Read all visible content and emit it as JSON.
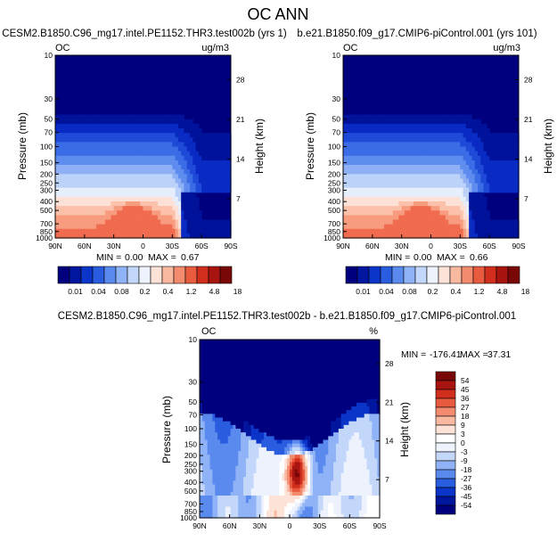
{
  "page": {
    "title": "OC ANN"
  },
  "colors": {
    "levels": [
      "#00007f",
      "#00129a",
      "#0a2ac4",
      "#1f4ad8",
      "#3a6ce6",
      "#5f8cef",
      "#8fb0f5",
      "#bcd2f8",
      "#e6eefc",
      "#ffffff",
      "#fde1d6",
      "#fbc1aa",
      "#f79c7e",
      "#f06b4f",
      "#e0402b",
      "#c11f16",
      "#940f0b",
      "#700707"
    ],
    "lowerBar": [
      "#00007f",
      "#00169e",
      "#0b35c8",
      "#2a5ce0",
      "#5a8aee",
      "#8fb3f6",
      "#c3d7fa",
      "#edf2fd",
      "#fde2d8",
      "#f9b9a1",
      "#f38b6e",
      "#e85b3f",
      "#d12e1e",
      "#a81510",
      "#7a0707"
    ],
    "diffBar": [
      "#7a0707",
      "#a81510",
      "#d12e1e",
      "#e85b3f",
      "#f38b6e",
      "#f9b9a1",
      "#fde2d8",
      "#ffffff",
      "#edf2fd",
      "#c3d7fa",
      "#8fb3f6",
      "#5a8aee",
      "#2a5ce0",
      "#0b35c8",
      "#00169e",
      "#00007f"
    ]
  },
  "chart_data": [
    {
      "type": "heatmap",
      "title": "CESM2.B1850.C96_mg17.intel.PE1152.THR3.test002b (yrs 1)",
      "left_label": "OC",
      "units": "ug/m3",
      "ylabel": "Pressure (mb)",
      "y2label": "Height (km)",
      "xticks": [
        "90N",
        "60N",
        "30N",
        "0",
        "30S",
        "60S",
        "90S"
      ],
      "yticks": [
        "10",
        "30",
        "50",
        "70",
        "100",
        "150",
        "200",
        "250",
        "300",
        "400",
        "500",
        "700",
        "850",
        "1000"
      ],
      "y2ticks": [
        "28",
        "21",
        "14",
        "7"
      ],
      "min": "0.00",
      "max": "0.67",
      "stats": {
        "min_label": "MIN =",
        "max_label": "MAX ="
      }
    },
    {
      "type": "heatmap",
      "title": "b.e21.B1850.f09_g17.CMIP6-piControl.001 (yrs 101)",
      "left_label": "OC",
      "units": "ug/m3",
      "ylabel": "Pressure (mb)",
      "y2label": "Height (km)",
      "xticks": [
        "90N",
        "60N",
        "30N",
        "0",
        "30S",
        "60S",
        "90S"
      ],
      "yticks": [
        "10",
        "30",
        "50",
        "70",
        "100",
        "150",
        "200",
        "250",
        "300",
        "400",
        "500",
        "700",
        "850",
        "1000"
      ],
      "y2ticks": [
        "28",
        "21",
        "14",
        "7"
      ],
      "min": "0.00",
      "max": "0.66",
      "stats": {
        "min_label": "MIN =",
        "max_label": "MAX ="
      }
    },
    {
      "type": "heatmap",
      "title": "CESM2.B1850.C96_mg17.intel.PE1152.THR3.test002b - b.e21.B1850.f09_g17.CMIP6-piControl.001",
      "left_label": "OC",
      "units": "%",
      "ylabel": "Pressure (mb)",
      "y2label": "Height (km)",
      "xticks": [
        "90N",
        "60N",
        "30N",
        "0",
        "30S",
        "60S",
        "90S"
      ],
      "yticks": [
        "10",
        "30",
        "50",
        "70",
        "100",
        "150",
        "200",
        "250",
        "300",
        "400",
        "500",
        "700",
        "850",
        "1000"
      ],
      "y2ticks": [
        "28",
        "21",
        "14",
        "7"
      ],
      "min": "-176.41",
      "max": "37.31",
      "stats": {
        "min_label": "MIN =",
        "max_label": "MAX ="
      }
    }
  ],
  "colorbars": {
    "lower": {
      "labels": [
        "0.01",
        "0.04",
        "0.08",
        "0.2",
        "0.4",
        "1.2",
        "4.8",
        "18"
      ]
    },
    "diff": {
      "labels": [
        "54",
        "45",
        "36",
        "27",
        "18",
        "9",
        "3",
        "0",
        "-3",
        "-9",
        "-18",
        "-27",
        "-36",
        "-45",
        "-54"
      ]
    }
  }
}
